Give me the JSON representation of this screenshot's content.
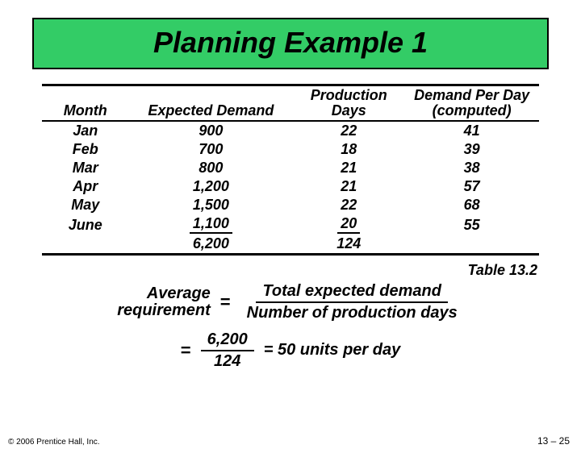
{
  "title": "Planning Example 1",
  "columns": {
    "month": "Month",
    "demand": "Expected Demand",
    "days_l1": "Production",
    "days_l2": "Days",
    "perday_l1": "Demand Per Day",
    "perday_l2": "(computed)"
  },
  "rows": [
    {
      "month": "Jan",
      "demand": "900",
      "days": "22",
      "perday": "41"
    },
    {
      "month": "Feb",
      "demand": "700",
      "days": "18",
      "perday": "39"
    },
    {
      "month": "Mar",
      "demand": "800",
      "days": "21",
      "perday": "38"
    },
    {
      "month": "Apr",
      "demand": "1,200",
      "days": "21",
      "perday": "57"
    },
    {
      "month": "May",
      "demand": "1,500",
      "days": "22",
      "perday": "68"
    },
    {
      "month": "June",
      "demand": "1,100",
      "days": "20",
      "perday": "55"
    }
  ],
  "totals": {
    "demand": "6,200",
    "days": "124"
  },
  "table_label": "Table 13.2",
  "formula": {
    "lhs_l1": "Average",
    "lhs_l2": "requirement",
    "eq": "=",
    "num1": "Total expected demand",
    "den1": "Number of production days",
    "num2": "6,200",
    "den2": "124",
    "rhs": "= 50 units per day"
  },
  "footer": {
    "copyright": "© 2006 Prentice Hall, Inc.",
    "page": "13 – 25"
  },
  "colors": {
    "title_bg": "#33cc66",
    "border": "#000000",
    "background": "#ffffff"
  }
}
